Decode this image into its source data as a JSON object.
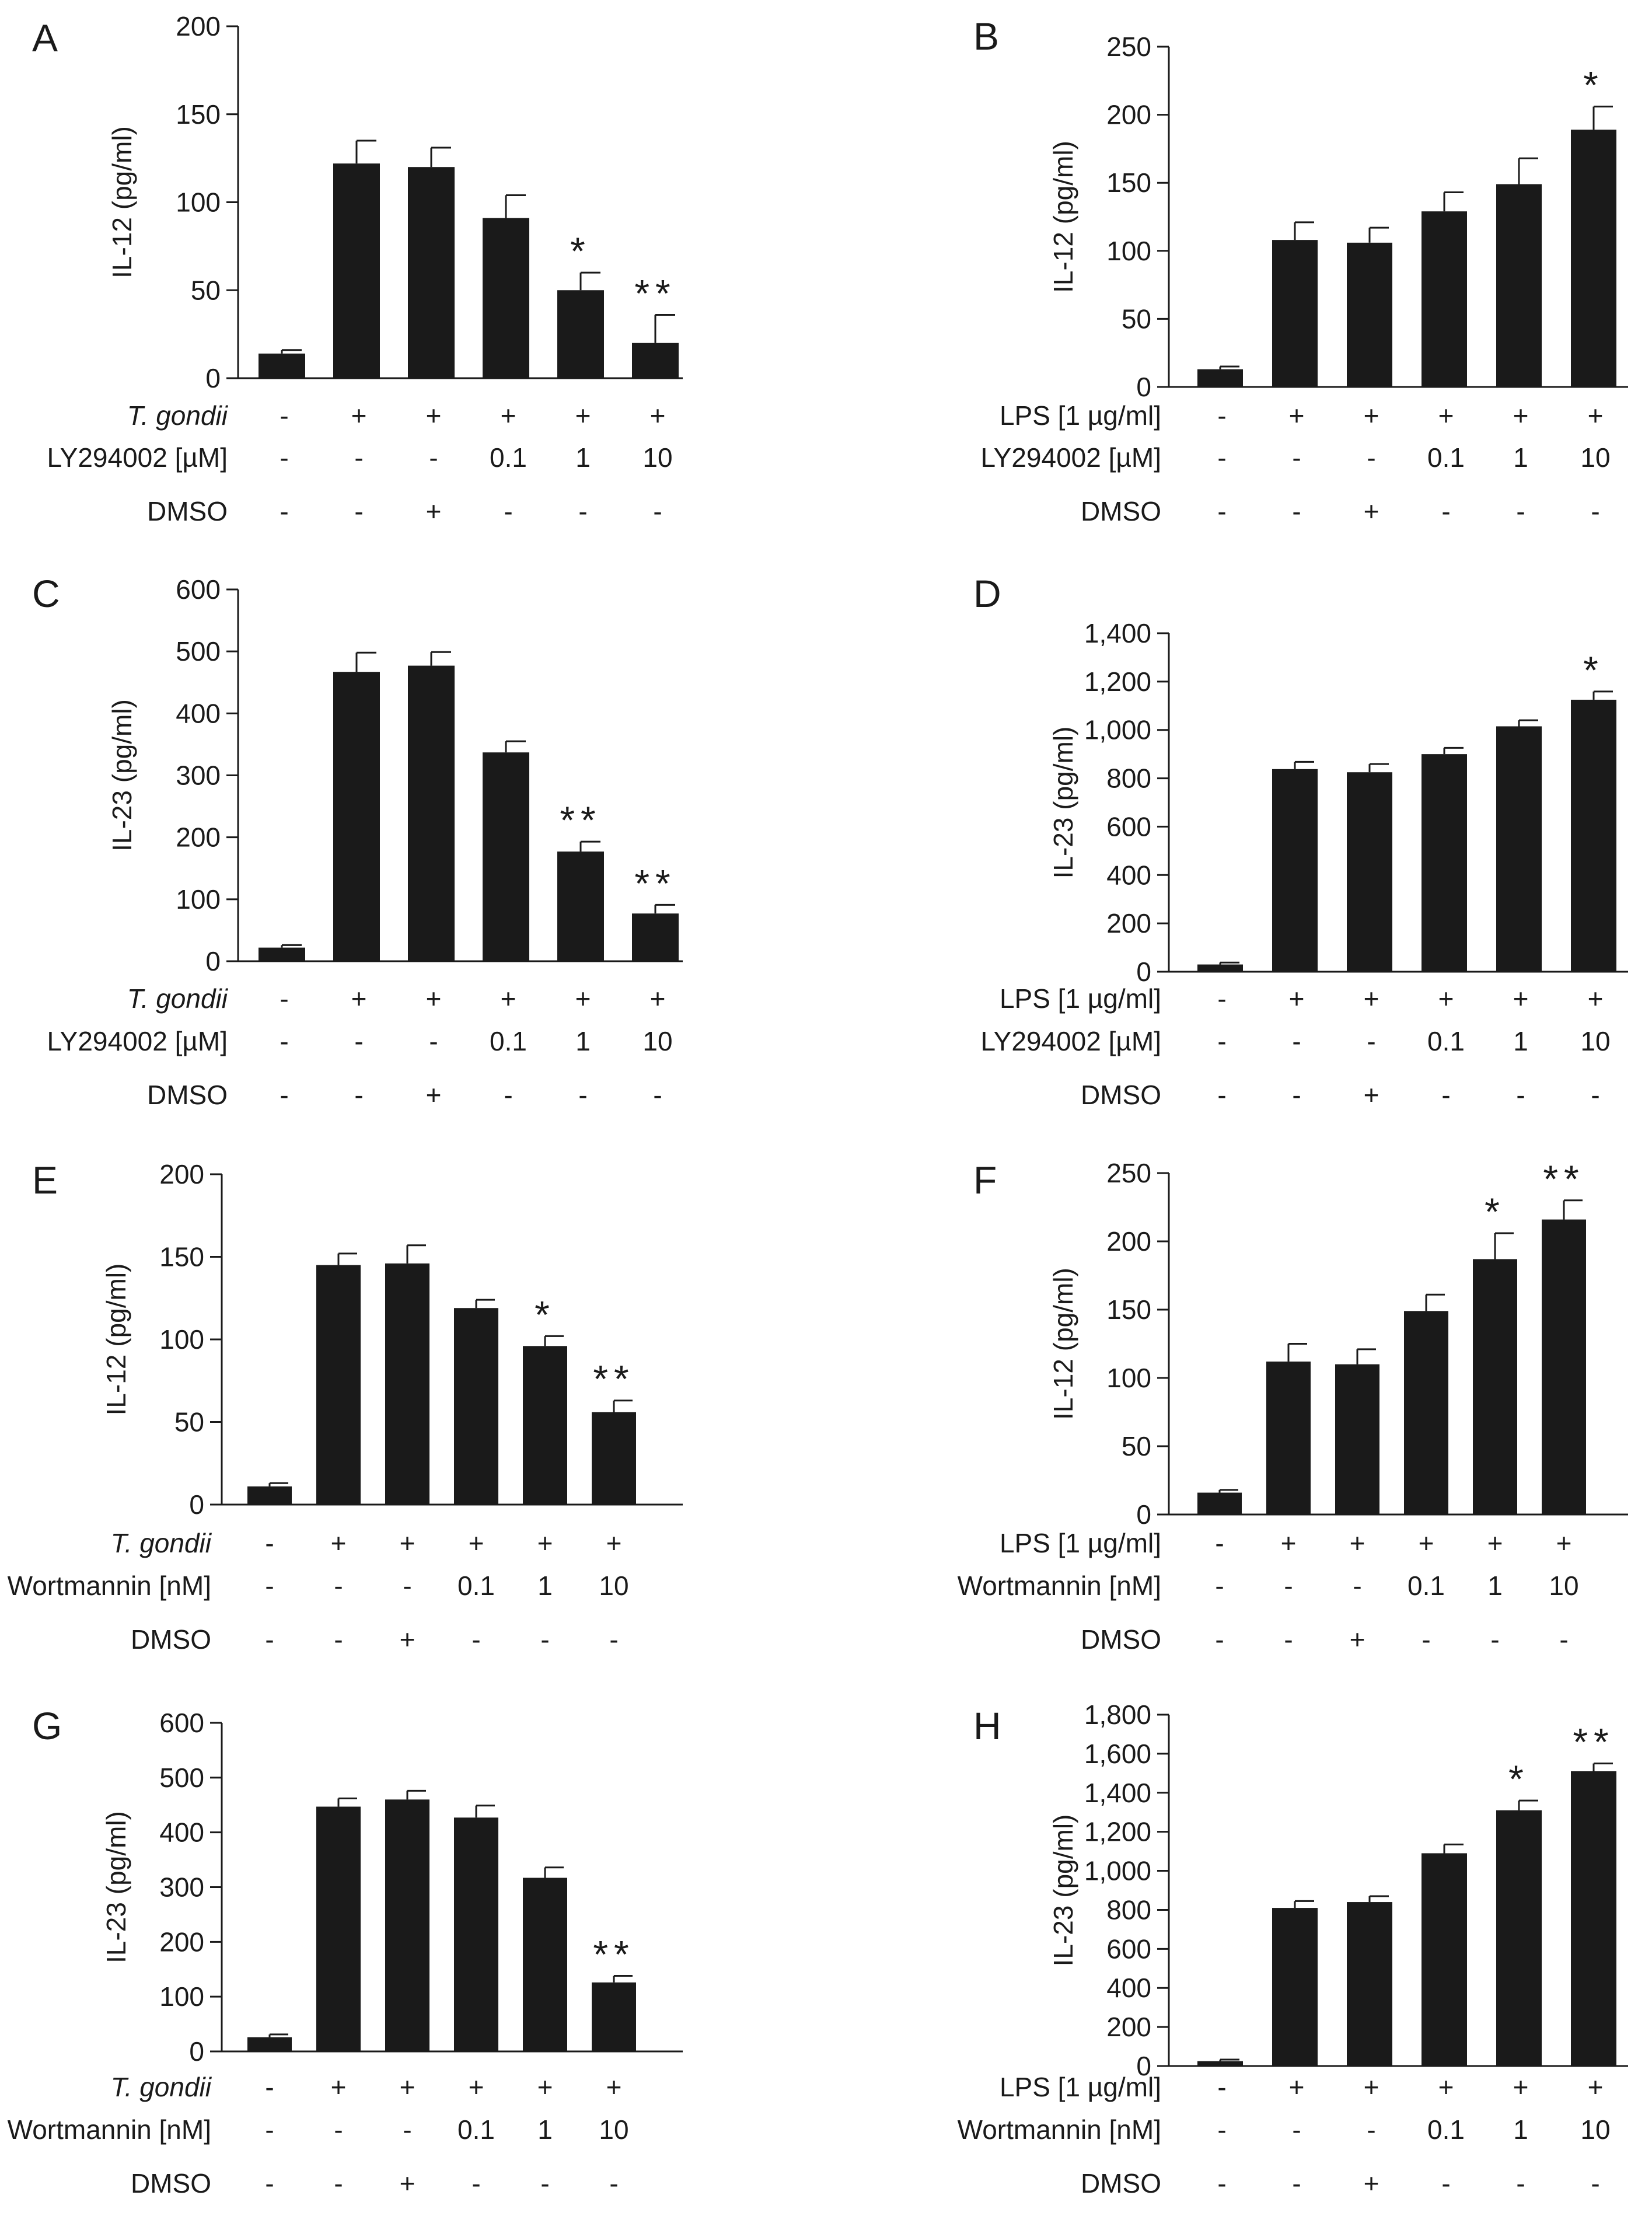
{
  "figure": {
    "colors": {
      "bar": "#1a1a1a",
      "axis": "#1a1a1a",
      "background": "#ffffff"
    }
  },
  "chart_data": [
    {
      "type": "bar",
      "panel": "A",
      "ylabel": "IL-12 (pg/ml)",
      "ylim": [
        0,
        200
      ],
      "yticks": [
        "0",
        "50",
        "100",
        "150",
        "200"
      ],
      "values": [
        14,
        122,
        120,
        91,
        50,
        20
      ],
      "errors": [
        2,
        13,
        11,
        13,
        10,
        16
      ],
      "significance": [
        "",
        "",
        "",
        "",
        "*",
        "**"
      ],
      "conditions": [
        {
          "label": "T. gondii",
          "italic": true,
          "values": [
            "-",
            "+",
            "+",
            "+",
            "+",
            "+"
          ]
        },
        {
          "label": "LY294002 [µM]",
          "italic": false,
          "values": [
            "-",
            "-",
            "-",
            "0.1",
            "1",
            "10"
          ]
        },
        {
          "label": "DMSO",
          "italic": false,
          "values": [
            "-",
            "-",
            "+",
            "-",
            "-",
            "-"
          ]
        }
      ]
    },
    {
      "type": "bar",
      "panel": "B",
      "ylabel": "IL-12 (pg/ml)",
      "ylim": [
        0,
        250
      ],
      "yticks": [
        "0",
        "50",
        "100",
        "150",
        "200",
        "250"
      ],
      "values": [
        13,
        108,
        106,
        129,
        149,
        189
      ],
      "errors": [
        2,
        13,
        11,
        14,
        19,
        17
      ],
      "significance": [
        "",
        "",
        "",
        "",
        "",
        "*"
      ],
      "conditions": [
        {
          "label": "LPS [1 µg/ml]",
          "italic": false,
          "values": [
            "-",
            "+",
            "+",
            "+",
            "+",
            "+"
          ]
        },
        {
          "label": "LY294002 [µM]",
          "italic": false,
          "values": [
            "-",
            "-",
            "-",
            "0.1",
            "1",
            "10"
          ]
        },
        {
          "label": "DMSO",
          "italic": false,
          "values": [
            "-",
            "-",
            "+",
            "-",
            "-",
            "-"
          ]
        }
      ]
    },
    {
      "type": "bar",
      "panel": "C",
      "ylabel": "IL-23 (pg/ml)",
      "ylim": [
        0,
        600
      ],
      "yticks": [
        "0",
        "100",
        "200",
        "300",
        "400",
        "500",
        "600"
      ],
      "values": [
        22,
        467,
        477,
        337,
        177,
        77
      ],
      "errors": [
        4,
        31,
        22,
        18,
        16,
        14
      ],
      "significance": [
        "",
        "",
        "",
        "",
        "**",
        "**"
      ],
      "conditions": [
        {
          "label": "T. gondii",
          "italic": true,
          "values": [
            "-",
            "+",
            "+",
            "+",
            "+",
            "+"
          ]
        },
        {
          "label": "LY294002 [µM]",
          "italic": false,
          "values": [
            "-",
            "-",
            "-",
            "0.1",
            "1",
            "10"
          ]
        },
        {
          "label": "DMSO",
          "italic": false,
          "values": [
            "-",
            "-",
            "+",
            "-",
            "-",
            "-"
          ]
        }
      ]
    },
    {
      "type": "bar",
      "panel": "D",
      "ylabel": "IL-23 (pg/ml)",
      "ylim": [
        0,
        1400
      ],
      "yticks": [
        "0",
        "200",
        "400",
        "600",
        "800",
        "1,000",
        "1,200",
        "1,400"
      ],
      "values": [
        30,
        838,
        825,
        900,
        1015,
        1125
      ],
      "errors": [
        8,
        30,
        34,
        26,
        25,
        34
      ],
      "significance": [
        "",
        "",
        "",
        "",
        "",
        "*"
      ],
      "conditions": [
        {
          "label": "LPS [1 µg/ml]",
          "italic": false,
          "values": [
            "-",
            "+",
            "+",
            "+",
            "+",
            "+"
          ]
        },
        {
          "label": "LY294002 [µM]",
          "italic": false,
          "values": [
            "-",
            "-",
            "-",
            "0.1",
            "1",
            "10"
          ]
        },
        {
          "label": "DMSO",
          "italic": false,
          "values": [
            "-",
            "-",
            "+",
            "-",
            "-",
            "-"
          ]
        }
      ]
    },
    {
      "type": "bar",
      "panel": "E",
      "ylabel": "IL-12 (pg/ml)",
      "ylim": [
        0,
        200
      ],
      "yticks": [
        "0",
        "50",
        "100",
        "150",
        "200"
      ],
      "values": [
        11,
        145,
        146,
        119,
        96,
        56
      ],
      "errors": [
        2,
        7,
        11,
        5,
        6,
        7
      ],
      "significance": [
        "",
        "",
        "",
        "",
        "*",
        "**"
      ],
      "conditions": [
        {
          "label": "T. gondii",
          "italic": true,
          "values": [
            "-",
            "+",
            "+",
            "+",
            "+",
            "+"
          ]
        },
        {
          "label": "Wortmannin [nM]",
          "italic": false,
          "values": [
            "-",
            "-",
            "-",
            "0.1",
            "1",
            "10"
          ]
        },
        {
          "label": "DMSO",
          "italic": false,
          "values": [
            "-",
            "-",
            "+",
            "-",
            "-",
            "-"
          ]
        }
      ]
    },
    {
      "type": "bar",
      "panel": "F",
      "ylabel": "IL-12 (pg/ml)",
      "ylim": [
        0,
        250
      ],
      "yticks": [
        "0",
        "50",
        "100",
        "150",
        "200",
        "250"
      ],
      "values": [
        16,
        112,
        110,
        149,
        187,
        216
      ],
      "errors": [
        2,
        13,
        11,
        12,
        19,
        14
      ],
      "significance": [
        "",
        "",
        "",
        "",
        "*",
        "**"
      ],
      "conditions": [
        {
          "label": "LPS [1 µg/ml]",
          "italic": false,
          "values": [
            "-",
            "+",
            "+",
            "+",
            "+",
            "+"
          ]
        },
        {
          "label": "Wortmannin [nM]",
          "italic": false,
          "values": [
            "-",
            "-",
            "-",
            "0.1",
            "1",
            "10"
          ]
        },
        {
          "label": "DMSO",
          "italic": false,
          "values": [
            "-",
            "-",
            "+",
            "-",
            "-",
            "-"
          ]
        }
      ]
    },
    {
      "type": "bar",
      "panel": "G",
      "ylabel": "IL-23 (pg/ml)",
      "ylim": [
        0,
        600
      ],
      "yticks": [
        "0",
        "100",
        "200",
        "300",
        "400",
        "500",
        "600"
      ],
      "values": [
        26,
        447,
        460,
        427,
        317,
        126
      ],
      "errors": [
        5,
        15,
        16,
        22,
        19,
        12
      ],
      "significance": [
        "",
        "",
        "",
        "",
        "",
        "**"
      ],
      "conditions": [
        {
          "label": "T. gondii",
          "italic": true,
          "values": [
            "-",
            "+",
            "+",
            "+",
            "+",
            "+"
          ]
        },
        {
          "label": "Wortmannin [nM]",
          "italic": false,
          "values": [
            "-",
            "-",
            "-",
            "0.1",
            "1",
            "10"
          ]
        },
        {
          "label": "DMSO",
          "italic": false,
          "values": [
            "-",
            "-",
            "+",
            "-",
            "-",
            "-"
          ]
        }
      ]
    },
    {
      "type": "bar",
      "panel": "H",
      "ylabel": "IL-23 (pg/ml)",
      "ylim": [
        0,
        1800
      ],
      "yticks": [
        "0",
        "200",
        "400",
        "600",
        "800",
        "1,000",
        "1,200",
        "1,400",
        "1,600",
        "1,800"
      ],
      "values": [
        25,
        810,
        840,
        1090,
        1310,
        1510
      ],
      "errors": [
        8,
        35,
        30,
        45,
        50,
        40
      ],
      "significance": [
        "",
        "",
        "",
        "",
        "*",
        "**"
      ],
      "conditions": [
        {
          "label": "LPS [1 µg/ml]",
          "italic": false,
          "values": [
            "-",
            "+",
            "+",
            "+",
            "+",
            "+"
          ]
        },
        {
          "label": "Wortmannin [nM]",
          "italic": false,
          "values": [
            "-",
            "-",
            "-",
            "0.1",
            "1",
            "10"
          ]
        },
        {
          "label": "DMSO",
          "italic": false,
          "values": [
            "-",
            "-",
            "+",
            "-",
            "-",
            "-"
          ]
        }
      ]
    }
  ]
}
